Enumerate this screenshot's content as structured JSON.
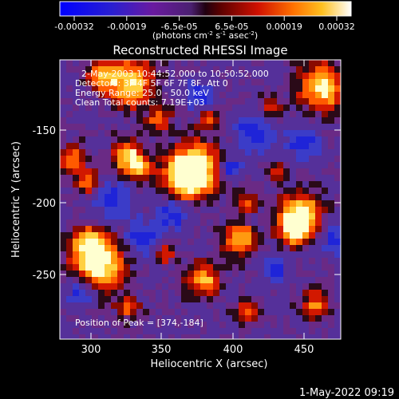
{
  "colorbar": {
    "ticks": [
      "-0.00032",
      "-0.00019",
      "-6.5e-05",
      "6.5e-05",
      "0.00019",
      "0.00032"
    ],
    "units_main": "(photons cm",
    "units_sup1": "-2",
    "units_mid1": " s",
    "units_sup2": "-1",
    "units_mid2": " asec",
    "units_sup3": "-2",
    "units_end": ")"
  },
  "image": {
    "title": "Reconstructed RHESSI Image",
    "info_lines": [
      "2-May-2003 10:44:52.000 to 10:50:52.000",
      "Detectors: 3F 4F 5F 6F 7F 8F, Att 0",
      "Energy Range: 25.0 - 50.0 keV",
      "Clean    Total counts: 7.19E+03"
    ],
    "peak_label": "Position of Peak = [374,-184]"
  },
  "axes": {
    "xlabel": "Heliocentric X (arcsec)",
    "ylabel": "Heliocentric Y (arcsec)",
    "xticks": [
      "300",
      "350",
      "400",
      "450"
    ],
    "yticks": [
      "-150",
      "-200",
      "-250"
    ]
  },
  "footer": {
    "timestamp": "1-May-2022 09:19"
  }
}
